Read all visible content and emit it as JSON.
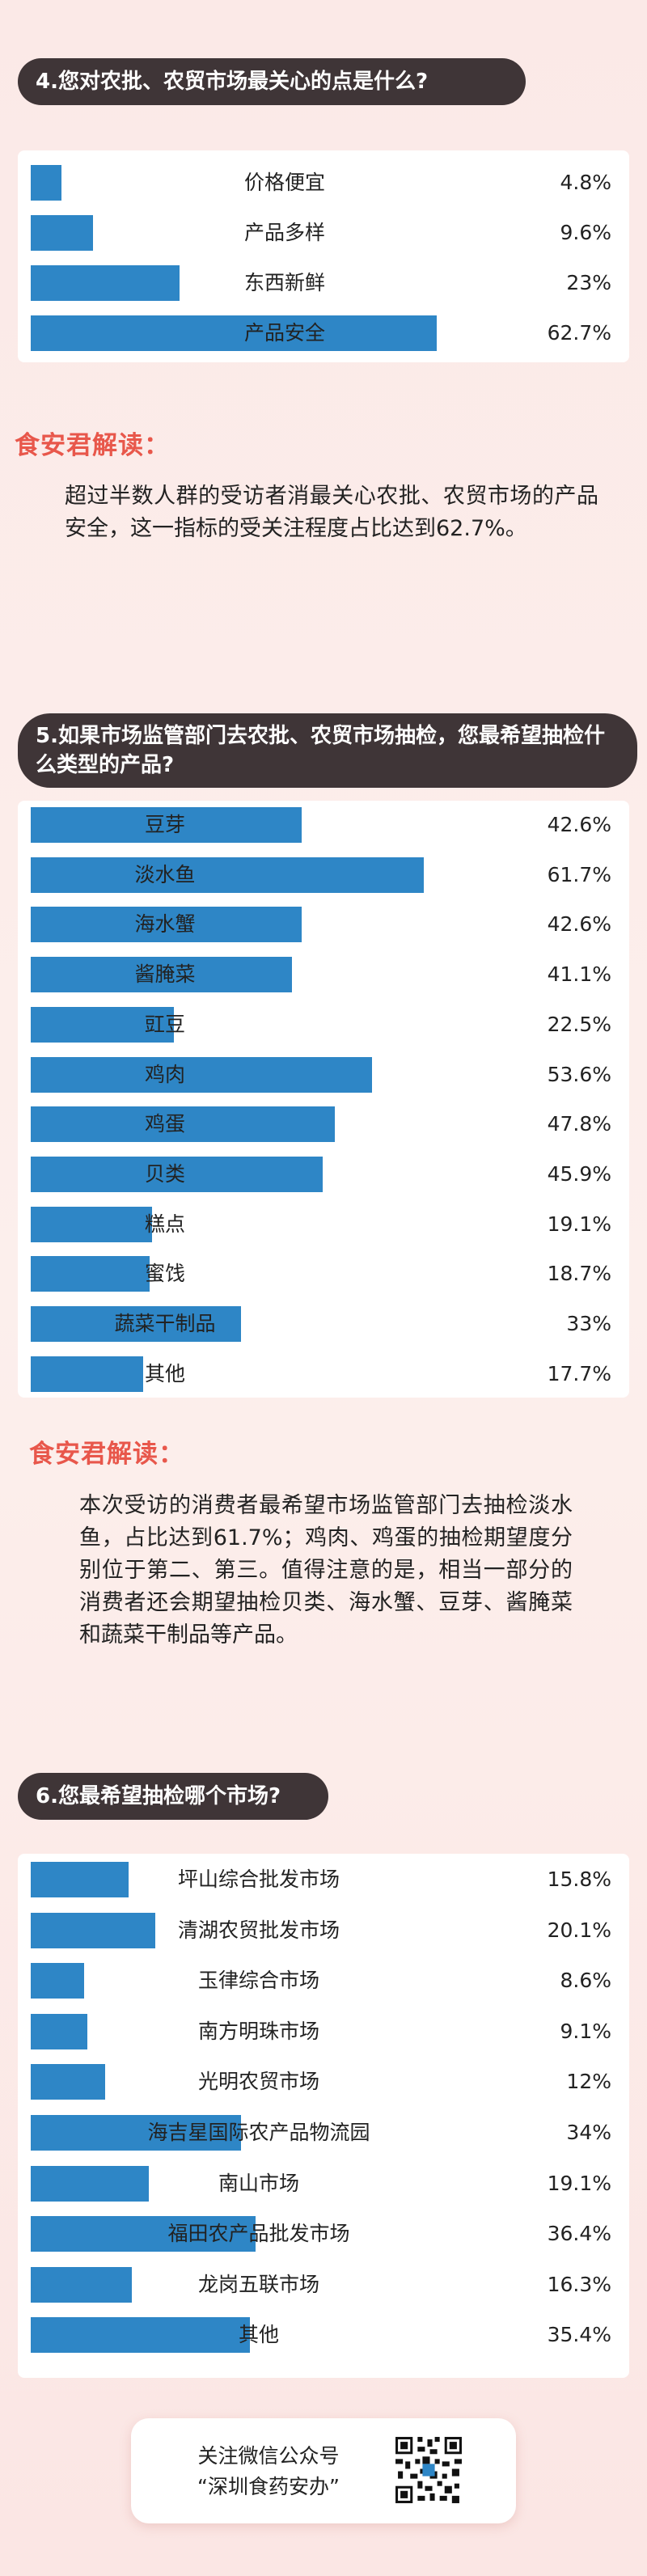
{
  "chart_data": [
    {
      "type": "bar",
      "title": "4.您对农批、农贸市场最关心的点是什么?",
      "categories": [
        "价格便宜",
        "产品多样",
        "东西新鲜",
        "产品安全"
      ],
      "values": [
        4.8,
        9.6,
        23,
        62.7
      ],
      "value_labels": [
        "4.8%",
        "9.6%",
        "23%",
        "62.7%"
      ],
      "unit": "%"
    },
    {
      "type": "bar",
      "title": "5.如果市场监管部门去农批、农贸市场抽检，您最希望抽检什么类型的产品?",
      "categories": [
        "豆芽",
        "淡水鱼",
        "海水蟹",
        "酱腌菜",
        "豇豆",
        "鸡肉",
        "鸡蛋",
        "贝类",
        "糕点",
        "蜜饯",
        "蔬菜干制品",
        "其他"
      ],
      "values": [
        42.6,
        61.7,
        42.6,
        41.1,
        22.5,
        53.6,
        47.8,
        45.9,
        19.1,
        18.7,
        33,
        17.7
      ],
      "value_labels": [
        "42.6%",
        "61.7%",
        "42.6%",
        "41.1%",
        "22.5%",
        "53.6%",
        "47.8%",
        "45.9%",
        "19.1%",
        "18.7%",
        "33%",
        "17.7%"
      ],
      "unit": "%"
    },
    {
      "type": "bar",
      "title": "6.您最希望抽检哪个市场?",
      "categories": [
        "坪山综合批发市场",
        "清湖农贸批发市场",
        "玉律综合市场",
        "南方明珠市场",
        "光明农贸市场",
        "海吉星国际农产品物流园",
        "南山市场",
        "福田农产品批发市场",
        "龙岗五联市场",
        "其他"
      ],
      "values": [
        15.8,
        20.1,
        8.6,
        9.1,
        12,
        34,
        19.1,
        36.4,
        16.3,
        35.4
      ],
      "value_labels": [
        "15.8%",
        "20.1%",
        "8.6%",
        "9.1%",
        "12%",
        "34%",
        "19.1%",
        "36.4%",
        "16.3%",
        "35.4%"
      ],
      "unit": "%"
    }
  ],
  "interpretations": [
    {
      "title": "食安君解读：",
      "text": "超过半数人群的受访者消最关心农批、农贸市场的产品安全，这一指标的受关注程度占比达到62.7%。"
    },
    {
      "title": "食安君解读：",
      "text": "本次受访的消费者最希望市场监管部门去抽检淡水鱼，占比达到61.7%；鸡肉、鸡蛋的抽检期望度分别位于第二、第三。值得注意的是，相当一部分的消费者还会期望抽检贝类、海水蟹、豆芽、酱腌菜和蔬菜干制品等产品。"
    }
  ],
  "footer": {
    "line1": "关注微信公众号",
    "line2": "“深圳食药安办”",
    "qr_icon": "qr-code-icon"
  },
  "colors": {
    "bar": "#2e86c6",
    "pill": "#3f3537",
    "accent": "#e8574b"
  }
}
